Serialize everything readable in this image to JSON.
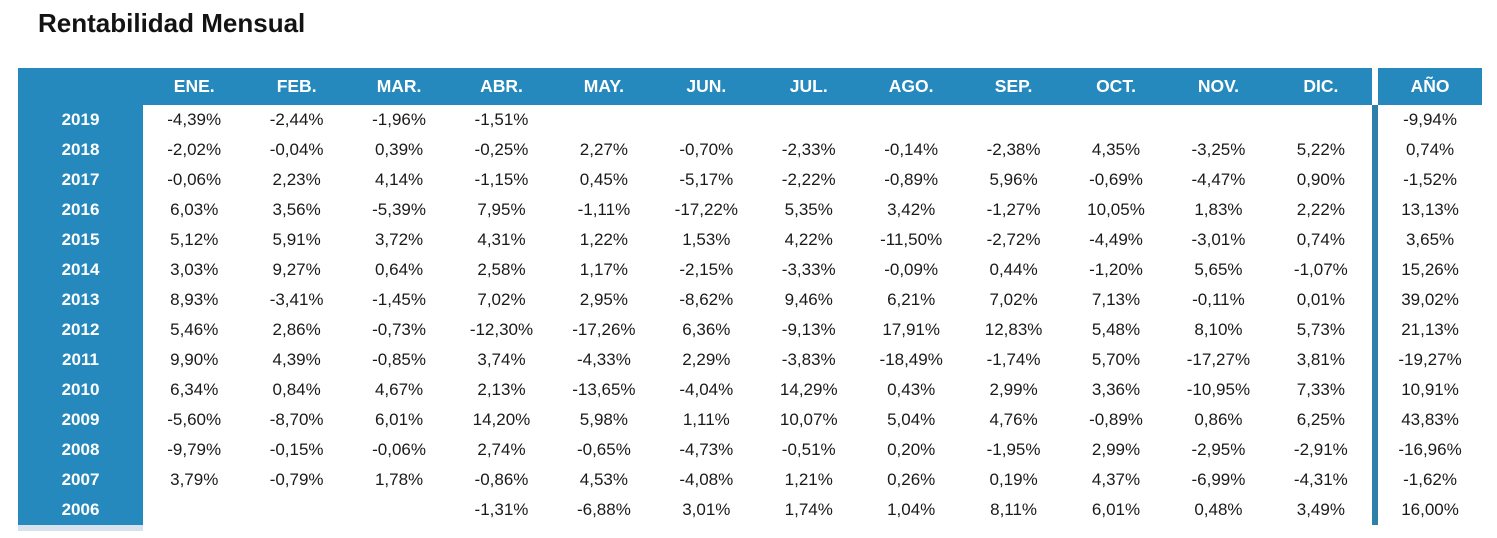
{
  "page": {
    "title": "Rentabilidad Mensual"
  },
  "colors": {
    "header_bg": "#2589BD",
    "divider": "#2D81A8",
    "text": "#1A1A1A",
    "header_text": "#FFFFFF",
    "bottom_strip": "#D6E3EE"
  },
  "chart_data": {
    "type": "table",
    "title": "Rentabilidad Mensual",
    "columns": [
      "ENE.",
      "FEB.",
      "MAR.",
      "ABR.",
      "MAY.",
      "JUN.",
      "JUL.",
      "AGO.",
      "SEP.",
      "OCT.",
      "NOV.",
      "DIC.",
      "AÑO"
    ],
    "rows": [
      {
        "year": "2019",
        "values": [
          "-4,39%",
          "-2,44%",
          "-1,96%",
          "-1,51%",
          "",
          "",
          "",
          "",
          "",
          "",
          "",
          "",
          "-9,94%"
        ]
      },
      {
        "year": "2018",
        "values": [
          "-2,02%",
          "-0,04%",
          "0,39%",
          "-0,25%",
          "2,27%",
          "-0,70%",
          "-2,33%",
          "-0,14%",
          "-2,38%",
          "4,35%",
          "-3,25%",
          "5,22%",
          "0,74%"
        ]
      },
      {
        "year": "2017",
        "values": [
          "-0,06%",
          "2,23%",
          "4,14%",
          "-1,15%",
          "0,45%",
          "-5,17%",
          "-2,22%",
          "-0,89%",
          "5,96%",
          "-0,69%",
          "-4,47%",
          "0,90%",
          "-1,52%"
        ]
      },
      {
        "year": "2016",
        "values": [
          "6,03%",
          "3,56%",
          "-5,39%",
          "7,95%",
          "-1,11%",
          "-17,22%",
          "5,35%",
          "3,42%",
          "-1,27%",
          "10,05%",
          "1,83%",
          "2,22%",
          "13,13%"
        ]
      },
      {
        "year": "2015",
        "values": [
          "5,12%",
          "5,91%",
          "3,72%",
          "4,31%",
          "1,22%",
          "1,53%",
          "4,22%",
          "-11,50%",
          "-2,72%",
          "-4,49%",
          "-3,01%",
          "0,74%",
          "3,65%"
        ]
      },
      {
        "year": "2014",
        "values": [
          "3,03%",
          "9,27%",
          "0,64%",
          "2,58%",
          "1,17%",
          "-2,15%",
          "-3,33%",
          "-0,09%",
          "0,44%",
          "-1,20%",
          "5,65%",
          "-1,07%",
          "15,26%"
        ]
      },
      {
        "year": "2013",
        "values": [
          "8,93%",
          "-3,41%",
          "-1,45%",
          "7,02%",
          "2,95%",
          "-8,62%",
          "9,46%",
          "6,21%",
          "7,02%",
          "7,13%",
          "-0,11%",
          "0,01%",
          "39,02%"
        ]
      },
      {
        "year": "2012",
        "values": [
          "5,46%",
          "2,86%",
          "-0,73%",
          "-12,30%",
          "-17,26%",
          "6,36%",
          "-9,13%",
          "17,91%",
          "12,83%",
          "5,48%",
          "8,10%",
          "5,73%",
          "21,13%"
        ]
      },
      {
        "year": "2011",
        "values": [
          "9,90%",
          "4,39%",
          "-0,85%",
          "3,74%",
          "-4,33%",
          "2,29%",
          "-3,83%",
          "-18,49%",
          "-1,74%",
          "5,70%",
          "-17,27%",
          "3,81%",
          "-19,27%"
        ]
      },
      {
        "year": "2010",
        "values": [
          "6,34%",
          "0,84%",
          "4,67%",
          "2,13%",
          "-13,65%",
          "-4,04%",
          "14,29%",
          "0,43%",
          "2,99%",
          "3,36%",
          "-10,95%",
          "7,33%",
          "10,91%"
        ]
      },
      {
        "year": "2009",
        "values": [
          "-5,60%",
          "-8,70%",
          "6,01%",
          "14,20%",
          "5,98%",
          "1,11%",
          "10,07%",
          "5,04%",
          "4,76%",
          "-0,89%",
          "0,86%",
          "6,25%",
          "43,83%"
        ]
      },
      {
        "year": "2008",
        "values": [
          "-9,79%",
          "-0,15%",
          "-0,06%",
          "2,74%",
          "-0,65%",
          "-4,73%",
          "-0,51%",
          "0,20%",
          "-1,95%",
          "2,99%",
          "-2,95%",
          "-2,91%",
          "-16,96%"
        ]
      },
      {
        "year": "2007",
        "values": [
          "3,79%",
          "-0,79%",
          "1,78%",
          "-0,86%",
          "4,53%",
          "-4,08%",
          "1,21%",
          "0,26%",
          "0,19%",
          "4,37%",
          "-6,99%",
          "-4,31%",
          "-1,62%"
        ]
      },
      {
        "year": "2006",
        "values": [
          "",
          "",
          "",
          "-1,31%",
          "-6,88%",
          "3,01%",
          "1,74%",
          "1,04%",
          "8,11%",
          "6,01%",
          "0,48%",
          "3,49%",
          "16,00%"
        ]
      }
    ]
  }
}
